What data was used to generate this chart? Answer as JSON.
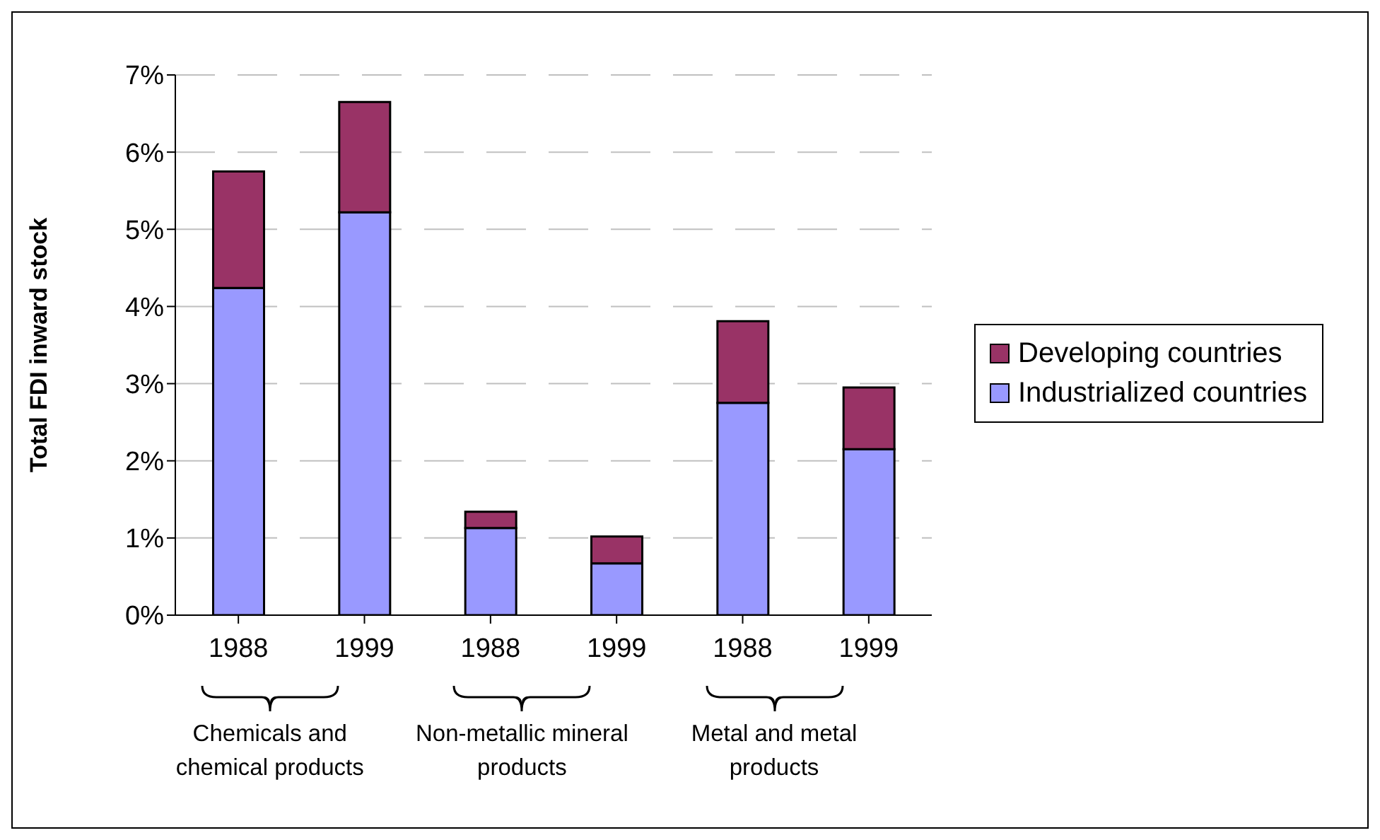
{
  "chart_data": {
    "type": "bar",
    "stacked": true,
    "ylabel": "Total FDI inward stock",
    "categories": [
      "1988",
      "1999",
      "1988",
      "1999",
      "1988",
      "1999"
    ],
    "series": [
      {
        "name": "Industrialized countries",
        "color": "#9999ff",
        "values": [
          4.24,
          5.22,
          1.13,
          0.67,
          2.75,
          2.15
        ]
      },
      {
        "name": "Developing countries",
        "color": "#993366",
        "values": [
          1.51,
          1.43,
          0.21,
          0.35,
          1.06,
          0.8
        ]
      }
    ],
    "ylim": [
      0,
      7
    ],
    "yticks": [
      {
        "value": 0,
        "label": "0%"
      },
      {
        "value": 1,
        "label": "1%"
      },
      {
        "value": 2,
        "label": "2%"
      },
      {
        "value": 3,
        "label": "3%"
      },
      {
        "value": 4,
        "label": "4%"
      },
      {
        "value": 5,
        "label": "5%"
      },
      {
        "value": 6,
        "label": "6%"
      },
      {
        "value": 7,
        "label": "7%"
      }
    ],
    "annotations": [
      "Chemicals and chemical products",
      "Non-metallic mineral products",
      "Metal and metal products"
    ],
    "grid": "y",
    "legend": "right"
  }
}
